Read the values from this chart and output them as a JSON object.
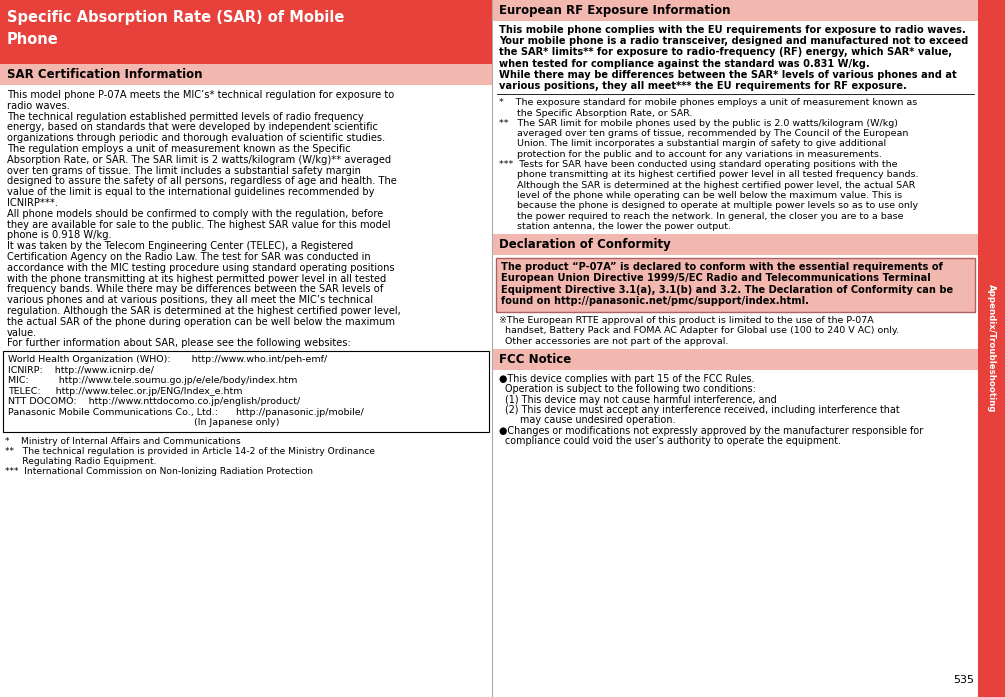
{
  "page_number": "535",
  "sidebar_text": "Appendix/Troubleshooting",
  "sidebar_bg": "#e8403a",
  "left_header_bg": "#e8403a",
  "left_header_line1": "Specific Absorption Rate (SAR) of Mobile",
  "left_header_line2": "Phone",
  "left_subheader_bg": "#f2b8b0",
  "left_subheader_text": "SAR Certification Information",
  "right_header_bg": "#f2b8b0",
  "right_header_text": "European RF Exposure Information",
  "decl_header_bg": "#f2b8b0",
  "decl_header_text": "Declaration of Conformity",
  "decl_box_border": "#c08080",
  "fcc_header_bg": "#f2b8b0",
  "fcc_header_text": "FCC Notice",
  "left_body_lines": [
    "This model phone P-07A meets the MIC’s* technical regulation for exposure to",
    "radio waves.",
    "The technical regulation established permitted levels of radio frequency",
    "energy, based on standards that were developed by independent scientific",
    "organizations through periodic and thorough evaluation of scientific studies.",
    "The regulation employs a unit of measurement known as the Specific",
    "Absorption Rate, or SAR. The SAR limit is 2 watts/kilogram (W/kg)** averaged",
    "over ten grams of tissue. The limit includes a substantial safety margin",
    "designed to assure the safety of all persons, regardless of age and health. The",
    "value of the limit is equal to the international guidelines recommended by",
    "ICNIRP***.",
    "All phone models should be confirmed to comply with the regulation, before",
    "they are available for sale to the public. The highest SAR value for this model",
    "phone is 0.918 W/kg.",
    "It was taken by the Telecom Engineering Center (TELEC), a Registered",
    "Certification Agency on the Radio Law. The test for SAR was conducted in",
    "accordance with the MIC testing procedure using standard operating positions",
    "with the phone transmitting at its highest permitted power level in all tested",
    "frequency bands. While there may be differences between the SAR levels of",
    "various phones and at various positions, they all meet the MIC’s technical",
    "regulation. Although the SAR is determined at the highest certified power level,",
    "the actual SAR of the phone during operation can be well below the maximum",
    "value.",
    "For further information about SAR, please see the following websites:"
  ],
  "url_lines": [
    "World Health Organization (WHO):       http://www.who.int/peh-emf/",
    "ICNIRP:    http://www.icnirp.de/",
    "MIC:          http://www.tele.soumu.go.jp/e/ele/body/index.htm",
    "TELEC:     http://www.telec.or.jp/ENG/Index_e.htm",
    "NTT DOCOMO:    http://www.nttdocomo.co.jp/english/product/",
    "Panasonic Mobile Communications Co., Ltd.:      http://panasonic.jp/mobile/",
    "                                                              (In Japanese only)"
  ],
  "footnote_lines": [
    "*    Ministry of Internal Affairs and Communications",
    "**   The technical regulation is provided in Article 14-2 of the Ministry Ordinance",
    "      Regulating Radio Equipment.",
    "***  International Commission on Non-Ionizing Radiation Protection"
  ],
  "right_bold_lines": [
    "This mobile phone complies with the EU requirements for exposure to radio waves.",
    "Your mobile phone is a radio transceiver, designed and manufactured not to exceed",
    "the SAR* limits** for exposure to radio-frequency (RF) energy, which SAR* value,",
    "when tested for compliance against the standard was 0.831 W/kg.",
    "While there may be differences between the SAR* levels of various phones and at",
    "various positions, they all meet*** the EU requirements for RF exposure."
  ],
  "right_fn_lines": [
    "*    The exposure standard for mobile phones employs a unit of measurement known as",
    "      the Specific Absorption Rate, or SAR.",
    "**   The SAR limit for mobile phones used by the public is 2.0 watts/kilogram (W/kg)",
    "      averaged over ten grams of tissue, recommended by The Council of the European",
    "      Union. The limit incorporates a substantial margin of safety to give additional",
    "      protection for the public and to account for any variations in measurements.",
    "***  Tests for SAR have been conducted using standard operating positions with the",
    "      phone transmitting at its highest certified power level in all tested frequency bands.",
    "      Although the SAR is determined at the highest certified power level, the actual SAR",
    "      level of the phone while operating can be well below the maximum value. This is",
    "      because the phone is designed to operate at multiple power levels so as to use only",
    "      the power required to reach the network. In general, the closer you are to a base",
    "      station antenna, the lower the power output."
  ],
  "decl_box_lines": [
    "The product “P-07A” is declared to conform with the essential requirements of",
    "European Union Directive 1999/5/EC Radio and Telecommunications Terminal",
    "Equipment Directive 3.1(a), 3.1(b) and 3.2. The Declaration of Conformity can be",
    "found on http://panasonic.net/pmc/support/index.html."
  ],
  "rtte_lines": [
    "※The European RTTE approval of this product is limited to the use of the P-07A",
    "  handset, Battery Pack and FOMA AC Adapter for Global use (100 to 240 V AC) only.",
    "  Other accessories are not part of the approval."
  ],
  "fcc_lines": [
    "●This device complies with part 15 of the FCC Rules.",
    "  Operation is subject to the following two conditions:",
    "  (1) This device may not cause harmful interference, and",
    "  (2) This device must accept any interference received, including interference that",
    "       may cause undesired operation.",
    "●Changes or modifications not expressly approved by the manufacturer responsible for",
    "  compliance could void the user’s authority to operate the equipment."
  ]
}
